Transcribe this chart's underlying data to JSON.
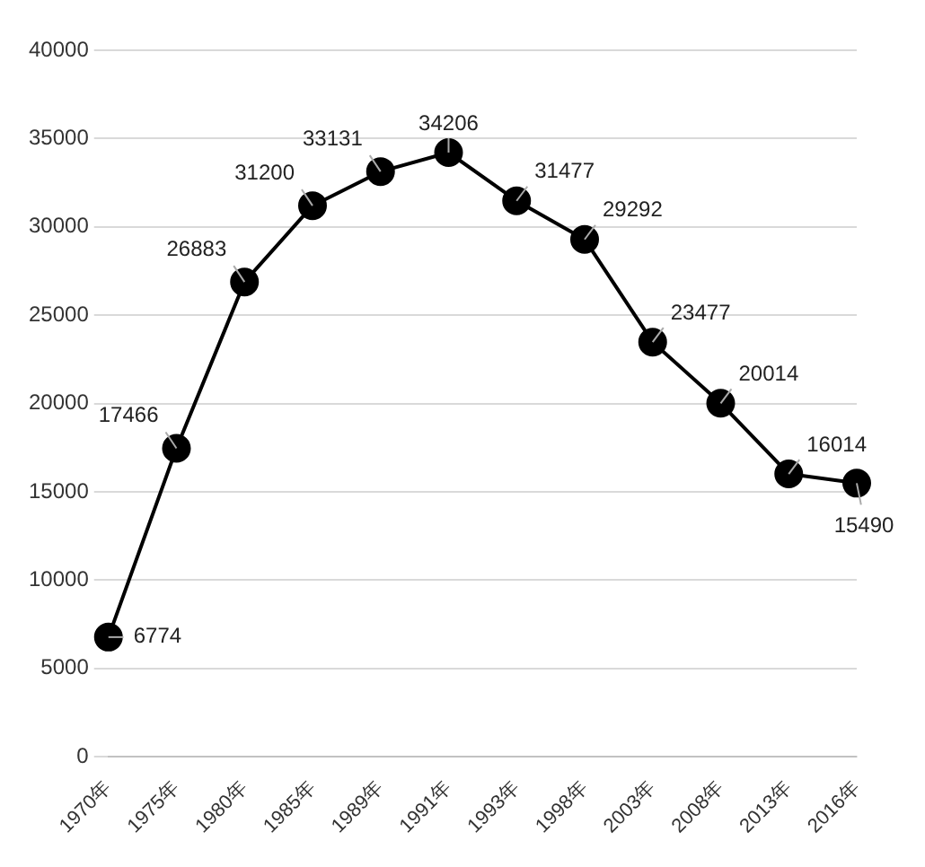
{
  "chart_data": {
    "type": "line",
    "categories": [
      "1970年",
      "1975年",
      "1980年",
      "1985年",
      "1989年",
      "1991年",
      "1993年",
      "1998年",
      "2003年",
      "2008年",
      "2013年",
      "2016年"
    ],
    "series": [
      {
        "color": "#000000",
        "values": [
          6774,
          17466,
          26883,
          31200,
          33131,
          34206,
          31477,
          29292,
          23477,
          20014,
          16014,
          15490
        ]
      }
    ],
    "ylim": [
      0,
      40000
    ],
    "yticks": [
      0,
      5000,
      10000,
      15000,
      20000,
      25000,
      30000,
      35000,
      40000
    ],
    "grid": "y",
    "legend": false,
    "marker": "circle",
    "line_style": "solid",
    "data_labels": true
  }
}
